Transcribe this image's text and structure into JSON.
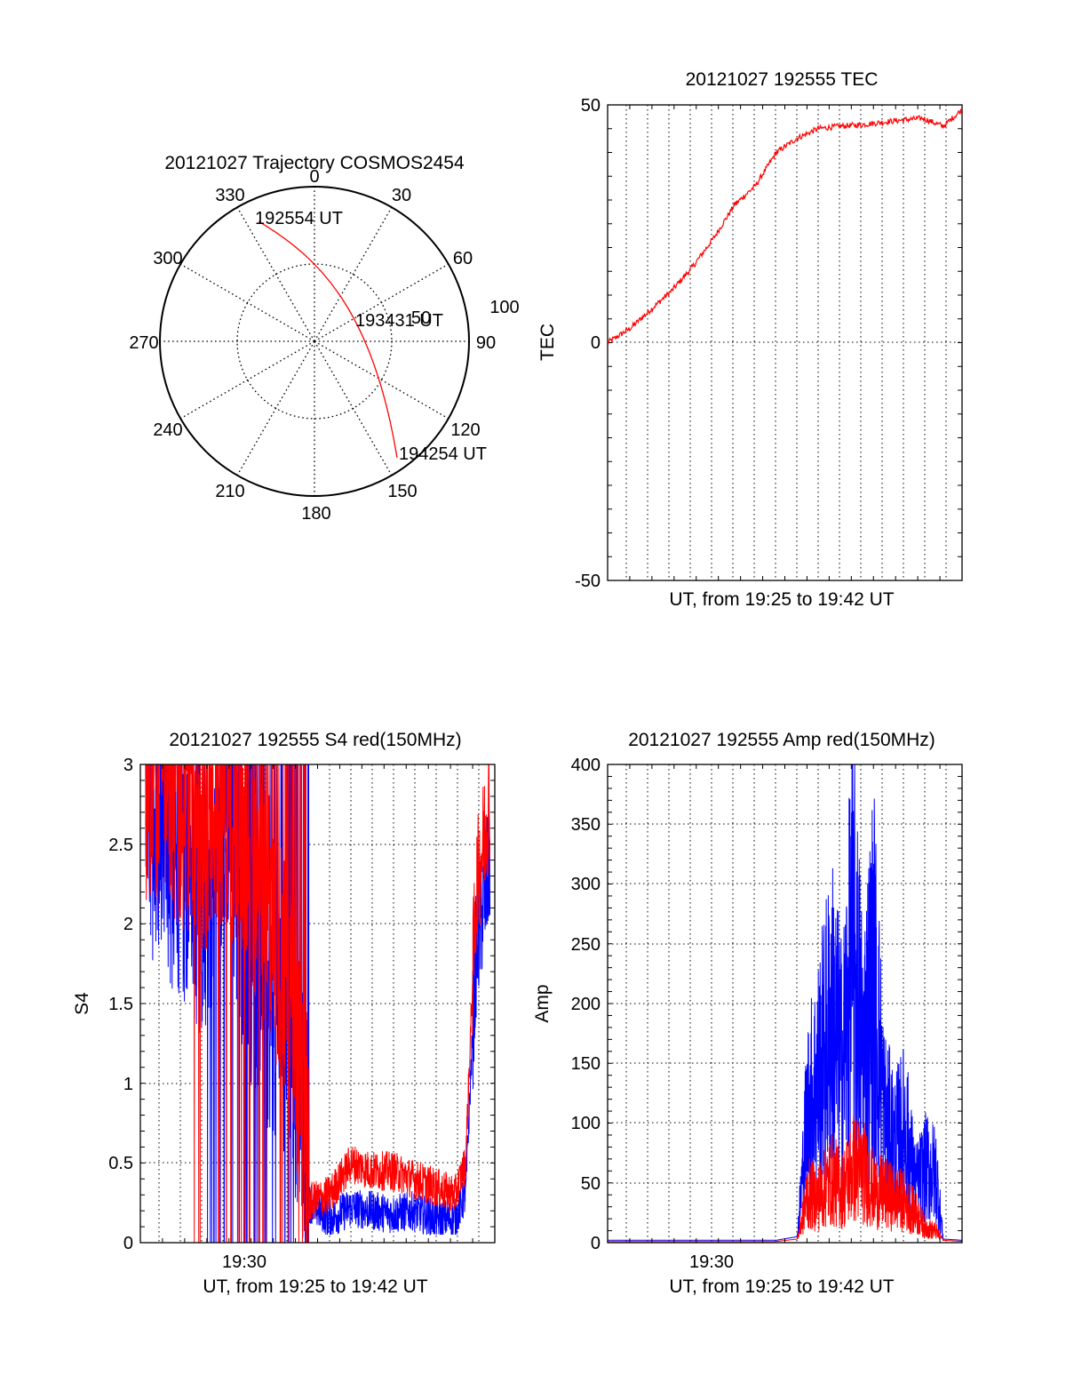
{
  "colors": {
    "red": "#ff0000",
    "blue": "#0000ff",
    "axis": "#000000",
    "grid": "#000000"
  },
  "polar": {
    "title": "20121027 Trajectory COSMOS2454",
    "azimuth_labels": [
      "0",
      "30",
      "60",
      "90",
      "120",
      "150",
      "180",
      "210",
      "240",
      "270",
      "300",
      "330"
    ],
    "radius_label": "50",
    "outer_radius_label": "100",
    "start_label": "192554 UT",
    "mid_label": "193431 UT",
    "end_label": "194254 UT"
  },
  "xlabel": "UT, from 19:25 to 19:42 UT",
  "x_tick_label": "19:30",
  "chart_data": [
    {
      "type": "line",
      "title": "20121027 192555 TEC",
      "xlabel": "UT, from 19:25 to 19:42 UT",
      "ylabel": "TEC",
      "xlim": [
        "19:25:55",
        "19:42:54"
      ],
      "ylim": [
        -50,
        50
      ],
      "yticks": [
        "50",
        "0",
        "-50"
      ],
      "grid": true,
      "series": [
        {
          "color": "#ff0000",
          "x": [
            "19:25:55",
            "19:27:00",
            "19:28:00",
            "19:29:00",
            "19:30:00",
            "19:31:00",
            "19:32:00",
            "19:33:00",
            "19:34:00",
            "19:35:00",
            "19:36:00",
            "19:37:00",
            "19:38:00",
            "19:39:00",
            "19:40:00",
            "19:41:00",
            "19:42:00",
            "19:42:54"
          ],
          "y": [
            0,
            3,
            7,
            11,
            16,
            22,
            29,
            33,
            40,
            43,
            45,
            45.5,
            45.8,
            46.3,
            46.8,
            47.2,
            45.5,
            49
          ]
        }
      ]
    },
    {
      "type": "line",
      "title": "20121027 192555 S4 red(150MHz)",
      "xlabel": "UT, from 19:25 to 19:42 UT",
      "ylabel": "S4",
      "xlim": [
        "19:25:55",
        "19:42:54"
      ],
      "ylim": [
        0,
        3
      ],
      "yticks": [
        "0",
        "0.5",
        "1",
        "1.5",
        "2",
        "2.5",
        "3"
      ],
      "xticks": [
        "19:30"
      ],
      "grid": true,
      "series": [
        {
          "color": "#0000ff",
          "x": [
            "19:26:10",
            "19:27:00",
            "19:28:00",
            "19:29:00",
            "19:30:00",
            "19:31:00",
            "19:32:00",
            "19:33:00",
            "19:34:00",
            "19:35:00",
            "19:36:00",
            "19:37:00",
            "19:38:00",
            "19:39:00",
            "19:40:00",
            "19:41:00",
            "19:41:30",
            "19:42:00",
            "19:42:40"
          ],
          "y": [
            2.3,
            2.1,
            2.0,
            1.7,
            2.5,
            1.5,
            1.2,
            1.0,
            0.25,
            0.15,
            0.22,
            0.2,
            0.18,
            0.2,
            0.15,
            0.15,
            0.3,
            1.8,
            2.4
          ]
        },
        {
          "color": "#ff0000",
          "x": [
            "19:26:10",
            "19:27:00",
            "19:28:00",
            "19:29:00",
            "19:30:00",
            "19:31:00",
            "19:32:00",
            "19:33:00",
            "19:34:00",
            "19:35:00",
            "19:36:00",
            "19:37:00",
            "19:38:00",
            "19:39:00",
            "19:40:00",
            "19:41:00",
            "19:41:30",
            "19:42:00",
            "19:42:40"
          ],
          "y": [
            2.2,
            2.6,
            2.4,
            2.3,
            2.5,
            2.1,
            1.8,
            1.2,
            0.25,
            0.3,
            0.5,
            0.45,
            0.45,
            0.4,
            0.35,
            0.3,
            0.5,
            2.2,
            2.8
          ]
        }
      ]
    },
    {
      "type": "line",
      "title": "20121027 192555 Amp red(150MHz)",
      "xlabel": "UT, from 19:25 to 19:42 UT",
      "ylabel": "Amp",
      "xlim": [
        "19:25:55",
        "19:42:54"
      ],
      "ylim": [
        0,
        400
      ],
      "yticks": [
        "0",
        "50",
        "100",
        "150",
        "200",
        "250",
        "300",
        "350",
        "400"
      ],
      "xticks": [
        "19:30"
      ],
      "grid": true,
      "series": [
        {
          "color": "#0000ff",
          "x": [
            "19:25:55",
            "19:30:00",
            "19:34:00",
            "19:35:00",
            "19:35:30",
            "19:36:00",
            "19:36:40",
            "19:37:10",
            "19:37:40",
            "19:38:10",
            "19:38:40",
            "19:39:10",
            "19:39:40",
            "19:40:10",
            "19:40:40",
            "19:41:10",
            "19:41:40",
            "19:42:00",
            "19:42:54"
          ],
          "y": [
            2,
            2,
            2,
            5,
            175,
            220,
            300,
            230,
            400,
            250,
            360,
            170,
            130,
            155,
            75,
            100,
            90,
            3,
            2
          ]
        },
        {
          "color": "#ff0000",
          "x": [
            "19:25:55",
            "19:30:00",
            "19:34:00",
            "19:35:00",
            "19:35:30",
            "19:36:00",
            "19:36:40",
            "19:37:10",
            "19:37:40",
            "19:38:10",
            "19:38:40",
            "19:39:10",
            "19:39:40",
            "19:40:10",
            "19:40:40",
            "19:41:10",
            "19:41:40",
            "19:42:00",
            "19:42:54"
          ],
          "y": [
            1,
            1,
            1,
            3,
            65,
            60,
            85,
            70,
            100,
            95,
            70,
            65,
            60,
            55,
            40,
            20,
            15,
            2,
            1
          ]
        }
      ]
    }
  ]
}
